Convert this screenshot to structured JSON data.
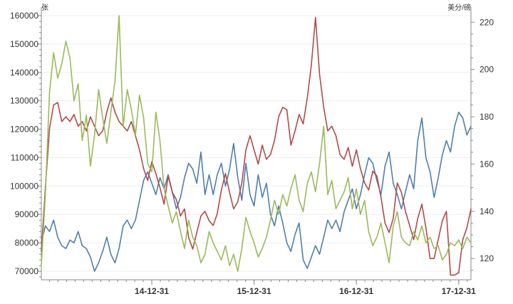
{
  "chart_data": {
    "type": "line",
    "title": "",
    "left_axis": {
      "unit": "张",
      "ylim": [
        67000,
        161000
      ],
      "ticks": [
        70000,
        80000,
        90000,
        100000,
        110000,
        120000,
        130000,
        140000,
        150000,
        160000
      ],
      "tick_labels": [
        "70000",
        "80000",
        "90000",
        "100000",
        "110000",
        "120000",
        "130000",
        "140000",
        "150000",
        "160000"
      ]
    },
    "right_axis": {
      "unit": "美分/磅",
      "ylim": [
        111,
        224
      ],
      "ticks": [
        120,
        140,
        160,
        180,
        200,
        220
      ],
      "tick_labels": [
        "120",
        "140",
        "160",
        "180",
        "200",
        "220"
      ]
    },
    "x_axis": {
      "range": [
        2013.92,
        2018.12
      ],
      "ticks": [
        2015.0,
        2016.0,
        2017.0,
        2018.0
      ],
      "tick_labels": [
        "14-12-31",
        "15-12-31",
        "16-12-31",
        "17-12-31"
      ]
    },
    "grid": true,
    "legend": "none",
    "series": [
      {
        "color": "#4f7fad",
        "axis": "left",
        "x": [
          2013.92,
          2013.96,
          2014.0,
          2014.04,
          2014.08,
          2014.12,
          2014.16,
          2014.2,
          2014.24,
          2014.28,
          2014.32,
          2014.36,
          2014.4,
          2014.44,
          2014.48,
          2014.52,
          2014.56,
          2014.6,
          2014.64,
          2014.68,
          2014.72,
          2014.76,
          2014.8,
          2014.84,
          2014.88,
          2014.92,
          2014.96,
          2015.0,
          2015.04,
          2015.08,
          2015.12,
          2015.16,
          2015.2,
          2015.24,
          2015.28,
          2015.32,
          2015.36,
          2015.4,
          2015.44,
          2015.48,
          2015.52,
          2015.56,
          2015.6,
          2015.64,
          2015.68,
          2015.72,
          2015.76,
          2015.8,
          2015.84,
          2015.88,
          2015.92,
          2015.96,
          2016.0,
          2016.04,
          2016.08,
          2016.12,
          2016.16,
          2016.2,
          2016.24,
          2016.28,
          2016.32,
          2016.36,
          2016.4,
          2016.44,
          2016.48,
          2016.52,
          2016.56,
          2016.6,
          2016.64,
          2016.68,
          2016.72,
          2016.76,
          2016.8,
          2016.84,
          2016.88,
          2016.92,
          2016.96,
          2017.0,
          2017.04,
          2017.08,
          2017.12,
          2017.16,
          2017.2,
          2017.24,
          2017.28,
          2017.32,
          2017.36,
          2017.4,
          2017.44,
          2017.48,
          2017.52,
          2017.56,
          2017.6,
          2017.64,
          2017.68,
          2017.72,
          2017.76,
          2017.8,
          2017.84,
          2017.88,
          2017.92,
          2017.96,
          2018.0,
          2018.04,
          2018.08,
          2018.12
        ],
        "values": [
          80000,
          86000,
          84000,
          88000,
          82000,
          79000,
          78000,
          81000,
          80000,
          84000,
          79000,
          78000,
          75000,
          70000,
          73000,
          77000,
          82000,
          76000,
          73000,
          78000,
          86000,
          88000,
          85000,
          88000,
          95000,
          102000,
          105000,
          101000,
          97000,
          103000,
          99000,
          104000,
          98000,
          92000,
          96000,
          103000,
          108000,
          106000,
          101000,
          112000,
          97000,
          104000,
          97000,
          104000,
          108000,
          100000,
          106000,
          115000,
          103000,
          95000,
          108000,
          97000,
          93000,
          104000,
          96000,
          101000,
          90000,
          86000,
          93000,
          87000,
          80000,
          77000,
          83000,
          87000,
          74000,
          71000,
          75000,
          79000,
          76000,
          82000,
          88000,
          85000,
          88000,
          84000,
          91000,
          95000,
          99000,
          92000,
          97000,
          104000,
          110000,
          108000,
          102000,
          97000,
          107000,
          112000,
          101000,
          97000,
          92000,
          98000,
          104000,
          99000,
          116000,
          124000,
          110000,
          105000,
          96000,
          103000,
          111000,
          116000,
          112000,
          121000,
          126000,
          124000,
          118000,
          121000
        ]
      },
      {
        "color": "#b14a4a",
        "axis": "right",
        "x": [
          2013.92,
          2013.96,
          2014.0,
          2014.04,
          2014.08,
          2014.12,
          2014.16,
          2014.2,
          2014.24,
          2014.28,
          2014.32,
          2014.36,
          2014.4,
          2014.44,
          2014.48,
          2014.52,
          2014.56,
          2014.6,
          2014.64,
          2014.68,
          2014.72,
          2014.76,
          2014.8,
          2014.84,
          2014.88,
          2014.92,
          2014.96,
          2015.0,
          2015.04,
          2015.08,
          2015.12,
          2015.16,
          2015.2,
          2015.24,
          2015.28,
          2015.32,
          2015.36,
          2015.4,
          2015.44,
          2015.48,
          2015.52,
          2015.56,
          2015.6,
          2015.64,
          2015.68,
          2015.72,
          2015.76,
          2015.8,
          2015.84,
          2015.88,
          2015.92,
          2015.96,
          2016.0,
          2016.04,
          2016.08,
          2016.12,
          2016.16,
          2016.2,
          2016.24,
          2016.28,
          2016.32,
          2016.36,
          2016.4,
          2016.44,
          2016.48,
          2016.52,
          2016.56,
          2016.6,
          2016.64,
          2016.68,
          2016.72,
          2016.76,
          2016.8,
          2016.84,
          2016.88,
          2016.92,
          2016.96,
          2017.0,
          2017.04,
          2017.08,
          2017.12,
          2017.16,
          2017.2,
          2017.24,
          2017.28,
          2017.32,
          2017.36,
          2017.4,
          2017.44,
          2017.48,
          2017.52,
          2017.56,
          2017.6,
          2017.64,
          2017.68,
          2017.72,
          2017.76,
          2017.8,
          2017.84,
          2017.88,
          2017.92,
          2017.96,
          2018.0,
          2018.04,
          2018.08,
          2018.12
        ],
        "values": [
          123,
          150,
          175,
          185,
          186,
          178,
          180,
          178,
          181,
          176,
          178,
          174,
          180,
          176,
          172,
          174,
          182,
          188,
          182,
          178,
          176,
          174,
          178,
          172,
          166,
          158,
          153,
          161,
          156,
          150,
          143,
          155,
          148,
          145,
          138,
          141,
          129,
          124,
          131,
          138,
          140,
          136,
          134,
          139,
          149,
          156,
          148,
          141,
          144,
          152,
          166,
          172,
          166,
          160,
          168,
          162,
          164,
          170,
          180,
          184,
          183,
          168,
          174,
          181,
          177,
          188,
          202,
          222,
          198,
          184,
          174,
          176,
          172,
          164,
          162,
          167,
          159,
          166,
          158,
          152,
          149,
          157,
          155,
          146,
          135,
          131,
          137,
          152,
          148,
          140,
          134,
          128,
          137,
          143,
          133,
          120,
          120,
          128,
          136,
          140,
          113,
          113,
          114,
          128,
          133,
          141
        ]
      },
      {
        "color": "#9aba5a",
        "axis": "left",
        "x": [
          2013.92,
          2013.96,
          2014.0,
          2014.04,
          2014.08,
          2014.12,
          2014.16,
          2014.2,
          2014.24,
          2014.28,
          2014.32,
          2014.36,
          2014.4,
          2014.44,
          2014.48,
          2014.52,
          2014.56,
          2014.6,
          2014.64,
          2014.68,
          2014.72,
          2014.76,
          2014.8,
          2014.84,
          2014.88,
          2014.92,
          2014.96,
          2015.0,
          2015.04,
          2015.08,
          2015.12,
          2015.16,
          2015.2,
          2015.24,
          2015.28,
          2015.32,
          2015.36,
          2015.4,
          2015.44,
          2015.48,
          2015.52,
          2015.56,
          2015.6,
          2015.64,
          2015.68,
          2015.72,
          2015.76,
          2015.8,
          2015.84,
          2015.88,
          2015.92,
          2015.96,
          2016.0,
          2016.04,
          2016.08,
          2016.12,
          2016.16,
          2016.2,
          2016.24,
          2016.28,
          2016.32,
          2016.36,
          2016.4,
          2016.44,
          2016.48,
          2016.52,
          2016.56,
          2016.6,
          2016.64,
          2016.68,
          2016.72,
          2016.76,
          2016.8,
          2016.84,
          2016.88,
          2016.92,
          2016.96,
          2017.0,
          2017.04,
          2017.08,
          2017.12,
          2017.16,
          2017.2,
          2017.24,
          2017.28,
          2017.32,
          2017.36,
          2017.4,
          2017.44,
          2017.48,
          2017.52,
          2017.56,
          2017.6,
          2017.64,
          2017.68,
          2017.72,
          2017.76,
          2017.8,
          2017.84,
          2017.88,
          2017.92,
          2017.96,
          2018.0,
          2018.04,
          2018.08,
          2018.12
        ],
        "values": [
          72000,
          97000,
          133000,
          147000,
          138000,
          143000,
          151000,
          145000,
          130000,
          136000,
          116000,
          125000,
          107000,
          118000,
          134000,
          124000,
          115000,
          126000,
          137000,
          160000,
          121000,
          134000,
          127000,
          118000,
          132000,
          124000,
          108000,
          105000,
          126000,
          116000,
          99000,
          93000,
          87000,
          91000,
          84000,
          78000,
          88000,
          82000,
          79000,
          73000,
          76000,
          84000,
          80000,
          77000,
          74000,
          79000,
          72000,
          76000,
          70000,
          78000,
          89000,
          84000,
          80000,
          75000,
          78000,
          82000,
          88000,
          95000,
          90000,
          97000,
          93000,
          99000,
          104000,
          95000,
          91000,
          101000,
          105000,
          98000,
          108000,
          121000,
          97000,
          102000,
          92000,
          95000,
          98000,
          103000,
          92000,
          99000,
          90000,
          95000,
          84000,
          79000,
          82000,
          87000,
          80000,
          73000,
          86000,
          91000,
          82000,
          80000,
          79000,
          84000,
          81000,
          86000,
          80000,
          82000,
          78000,
          79000,
          74000,
          76000,
          80000,
          79000,
          81000,
          78000,
          82000,
          80000
        ]
      }
    ]
  }
}
